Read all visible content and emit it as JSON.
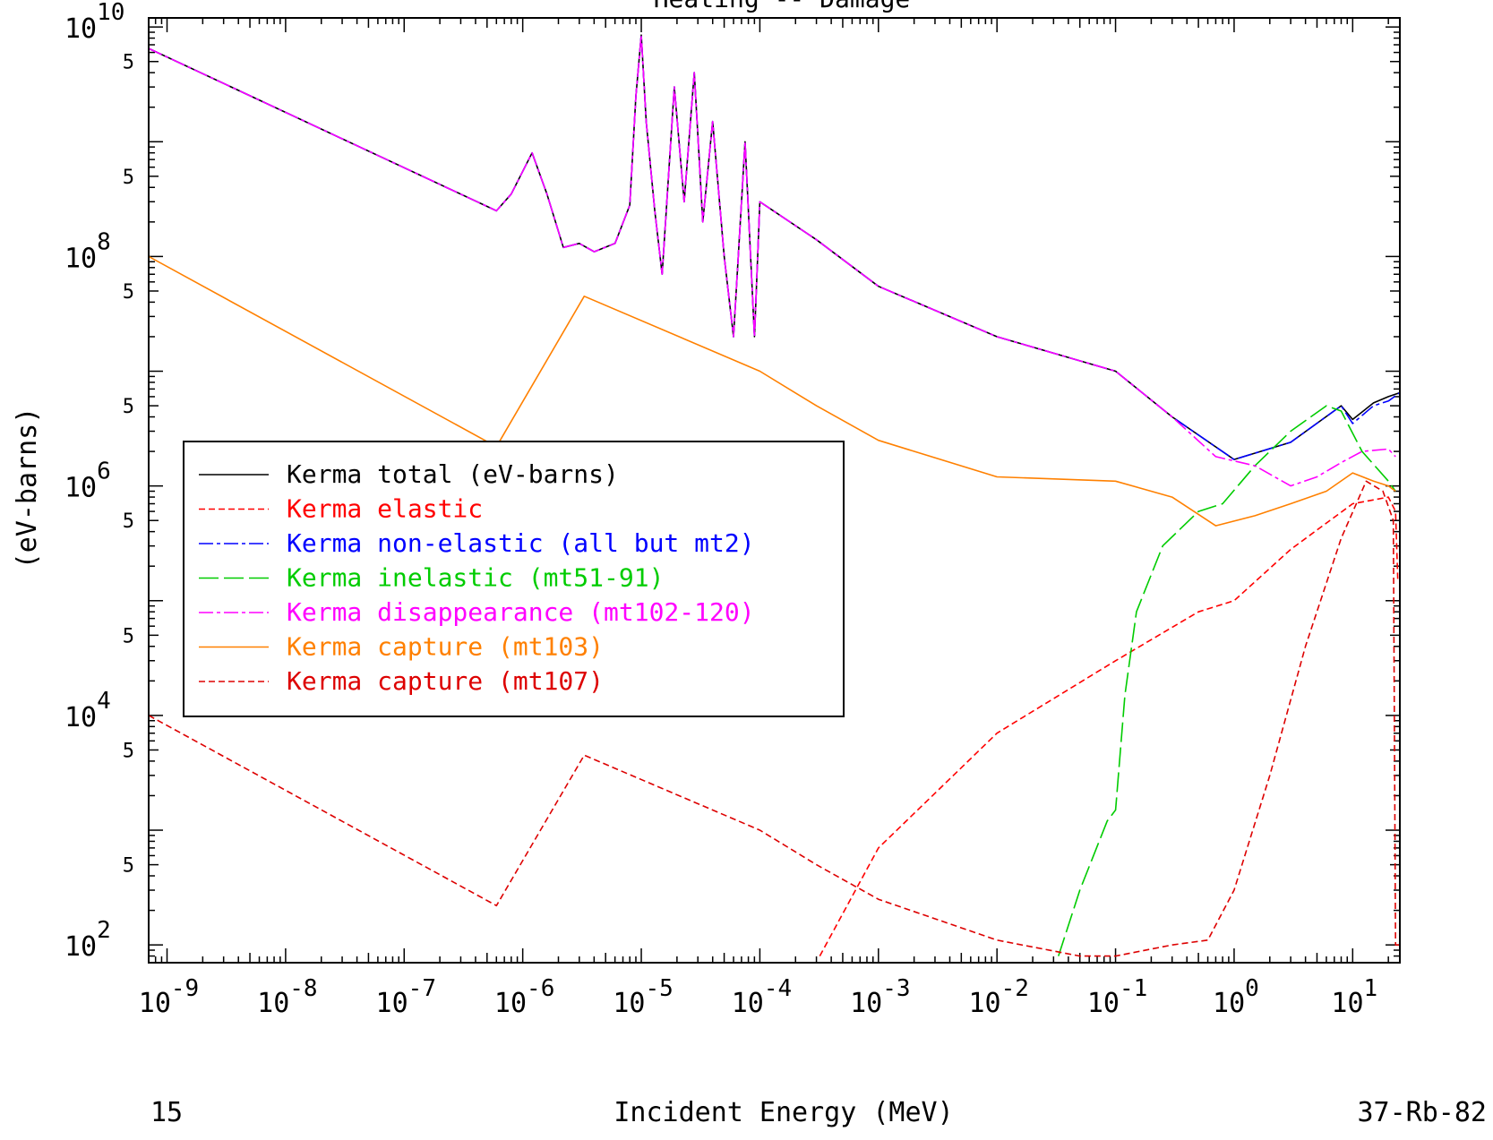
{
  "page": {
    "title": "Heating -- Damage",
    "footer_left": "15",
    "footer_right": "37-Rb-82"
  },
  "chart_data": {
    "type": "line",
    "title": "Heating -- Damage",
    "xlabel": "Incident Energy (MeV)",
    "ylabel": "(eV-barns)",
    "xscale": "log",
    "yscale": "log",
    "xlim": [
      7e-10,
      25
    ],
    "ylim": [
      70,
      12000000000
    ],
    "x_ticks": [
      {
        "base": "10",
        "exp": "-9",
        "value": 1e-09
      },
      {
        "base": "10",
        "exp": "-8",
        "value": 1e-08
      },
      {
        "base": "10",
        "exp": "-7",
        "value": 1e-07
      },
      {
        "base": "10",
        "exp": "-6",
        "value": 1e-06
      },
      {
        "base": "10",
        "exp": "-5",
        "value": 1e-05
      },
      {
        "base": "10",
        "exp": "-4",
        "value": 0.0001
      },
      {
        "base": "10",
        "exp": "-3",
        "value": 0.001
      },
      {
        "base": "10",
        "exp": "-2",
        "value": 0.01
      },
      {
        "base": "10",
        "exp": "-1",
        "value": 0.1
      },
      {
        "base": "10",
        "exp": "0",
        "value": 1
      },
      {
        "base": "10",
        "exp": "1",
        "value": 10
      }
    ],
    "y_ticks_major": [
      {
        "base": "10",
        "exp": "10",
        "value": 10000000000.0
      },
      {
        "base": "10",
        "exp": "8",
        "value": 100000000.0
      },
      {
        "base": "10",
        "exp": "6",
        "value": 1000000.0
      },
      {
        "base": "10",
        "exp": "4",
        "value": 10000.0
      },
      {
        "base": "10",
        "exp": "2",
        "value": 100.0
      }
    ],
    "y_ticks_minor_label": "5",
    "y_ticks_minor": [
      5000000000.0,
      500000000.0,
      50000000.0,
      5000000.0,
      500000.0,
      50000.0,
      5000.0,
      500.0
    ],
    "legend_position": "left",
    "series": [
      {
        "name": "Kerma total  (eV-barns)",
        "color": "#000000",
        "dash": "solid",
        "points": [
          [
            7e-10,
            6500000000.0
          ],
          [
            6e-07,
            250000000.0
          ],
          [
            8e-07,
            350000000.0
          ],
          [
            1.2e-06,
            800000000.0
          ],
          [
            1.6e-06,
            350000000.0
          ],
          [
            2.2e-06,
            120000000.0
          ],
          [
            3e-06,
            130000000.0
          ],
          [
            4e-06,
            110000000.0
          ],
          [
            6e-06,
            130000000.0
          ],
          [
            8e-06,
            280000000.0
          ],
          [
            9e-06,
            2500000000.0
          ],
          [
            1e-05,
            8500000000.0
          ],
          [
            1.1e-05,
            1500000000.0
          ],
          [
            1.3e-05,
            250000000.0
          ],
          [
            1.5e-05,
            70000000.0
          ],
          [
            1.9e-05,
            3000000000.0
          ],
          [
            2.3e-05,
            300000000.0
          ],
          [
            2.8e-05,
            4000000000.0
          ],
          [
            3.3e-05,
            200000000.0
          ],
          [
            4e-05,
            1500000000.0
          ],
          [
            5e-05,
            100000000.0
          ],
          [
            6e-05,
            20000000.0
          ],
          [
            7.5e-05,
            1000000000.0
          ],
          [
            9e-05,
            20000000.0
          ],
          [
            0.0001,
            300000000.0
          ],
          [
            0.0003,
            140000000.0
          ],
          [
            0.001,
            55000000.0
          ],
          [
            0.01,
            20000000.0
          ],
          [
            0.1,
            10000000.0
          ],
          [
            0.3,
            4000000.0
          ],
          [
            1,
            1700000.0
          ],
          [
            3,
            2400000.0
          ],
          [
            8,
            5000000.0
          ],
          [
            10,
            3800000.0
          ],
          [
            15,
            5300000.0
          ],
          [
            20,
            6000000.0
          ],
          [
            25,
            6500000.0
          ]
        ]
      },
      {
        "name": "Kerma elastic",
        "color": "#ff0000",
        "dash": "short-dash",
        "points": [
          [
            0.00032,
            80
          ],
          [
            0.001,
            700
          ],
          [
            0.01,
            7000
          ],
          [
            0.1,
            30000
          ],
          [
            0.5,
            80000
          ],
          [
            1,
            100000
          ],
          [
            3,
            280000
          ],
          [
            10,
            700000
          ],
          [
            20,
            800000
          ],
          [
            23,
            600000
          ],
          [
            24,
            150000
          ],
          [
            25,
            150000
          ]
        ]
      },
      {
        "name": "Kerma non-elastic (all but mt2)",
        "color": "#0000ff",
        "dash": "dash-dot",
        "points": [
          [
            7e-10,
            6500000000.0
          ],
          [
            6e-07,
            250000000.0
          ],
          [
            8e-07,
            350000000.0
          ],
          [
            1.2e-06,
            800000000.0
          ],
          [
            1.6e-06,
            350000000.0
          ],
          [
            2.2e-06,
            120000000.0
          ],
          [
            3e-06,
            130000000.0
          ],
          [
            4e-06,
            110000000.0
          ],
          [
            6e-06,
            130000000.0
          ],
          [
            8e-06,
            280000000.0
          ],
          [
            9e-06,
            2500000000.0
          ],
          [
            1e-05,
            8500000000.0
          ],
          [
            1.1e-05,
            1500000000.0
          ],
          [
            1.3e-05,
            250000000.0
          ],
          [
            1.5e-05,
            70000000.0
          ],
          [
            1.9e-05,
            3000000000.0
          ],
          [
            2.3e-05,
            300000000.0
          ],
          [
            2.8e-05,
            4000000000.0
          ],
          [
            3.3e-05,
            200000000.0
          ],
          [
            4e-05,
            1500000000.0
          ],
          [
            5e-05,
            100000000.0
          ],
          [
            6e-05,
            20000000.0
          ],
          [
            7.5e-05,
            1000000000.0
          ],
          [
            9e-05,
            20000000.0
          ],
          [
            0.0001,
            300000000.0
          ],
          [
            0.0003,
            140000000.0
          ],
          [
            0.001,
            55000000.0
          ],
          [
            0.01,
            20000000.0
          ],
          [
            0.1,
            10000000.0
          ],
          [
            0.3,
            4000000.0
          ],
          [
            1,
            1700000.0
          ],
          [
            3,
            2400000.0
          ],
          [
            8,
            5000000.0
          ],
          [
            10,
            3500000.0
          ],
          [
            15,
            5000000.0
          ],
          [
            20,
            5500000.0
          ],
          [
            25,
            6500000.0
          ]
        ]
      },
      {
        "name": "Kerma inelastic (mt51-91)",
        "color": "#00cc00",
        "dash": "long-dash",
        "points": [
          [
            0.033,
            80
          ],
          [
            0.05,
            300
          ],
          [
            0.085,
            1200
          ],
          [
            0.1,
            1500
          ],
          [
            0.12,
            15000
          ],
          [
            0.15,
            80000
          ],
          [
            0.25,
            300000
          ],
          [
            0.5,
            600000
          ],
          [
            0.8,
            700000
          ],
          [
            1.5,
            1500000
          ],
          [
            3,
            3000000
          ],
          [
            6,
            5000000
          ],
          [
            8,
            4500000
          ],
          [
            12,
            2000000
          ],
          [
            20,
            1100000
          ],
          [
            23,
            900000
          ]
        ]
      },
      {
        "name": "Kerma disappearance (mt102-120)",
        "color": "#ff00ff",
        "dash": "dash-dot",
        "points": [
          [
            7e-10,
            6500000000.0
          ],
          [
            6e-07,
            250000000.0
          ],
          [
            8e-07,
            350000000.0
          ],
          [
            1.2e-06,
            800000000.0
          ],
          [
            1.6e-06,
            350000000.0
          ],
          [
            2.2e-06,
            120000000.0
          ],
          [
            3e-06,
            130000000.0
          ],
          [
            4e-06,
            110000000.0
          ],
          [
            6e-06,
            130000000.0
          ],
          [
            8e-06,
            280000000.0
          ],
          [
            9e-06,
            2500000000.0
          ],
          [
            1e-05,
            8500000000.0
          ],
          [
            1.1e-05,
            1500000000.0
          ],
          [
            1.3e-05,
            250000000.0
          ],
          [
            1.5e-05,
            70000000.0
          ],
          [
            1.9e-05,
            3000000000.0
          ],
          [
            2.3e-05,
            300000000.0
          ],
          [
            2.8e-05,
            4000000000.0
          ],
          [
            3.3e-05,
            200000000.0
          ],
          [
            4e-05,
            1500000000.0
          ],
          [
            5e-05,
            100000000.0
          ],
          [
            6e-05,
            20000000.0
          ],
          [
            7.5e-05,
            1000000000.0
          ],
          [
            9e-05,
            20000000.0
          ],
          [
            0.0001,
            300000000.0
          ],
          [
            0.0003,
            140000000.0
          ],
          [
            0.001,
            55000000.0
          ],
          [
            0.01,
            20000000.0
          ],
          [
            0.1,
            10000000.0
          ],
          [
            0.3,
            4000000.0
          ],
          [
            0.7,
            1800000.0
          ],
          [
            1.5,
            1500000.0
          ],
          [
            3,
            1000000.0
          ],
          [
            5,
            1200000.0
          ],
          [
            8,
            1600000.0
          ],
          [
            12,
            2000000.0
          ],
          [
            20,
            2100000.0
          ],
          [
            23,
            1800000.0
          ]
        ]
      },
      {
        "name": "Kerma capture (mt103)",
        "color": "#ff8000",
        "dash": "solid",
        "points": [
          [
            7e-10,
            100000000.0
          ],
          [
            6e-07,
            2200000.0
          ],
          [
            3.3e-06,
            45000000.0
          ],
          [
            0.0001,
            10000000.0
          ],
          [
            0.0003,
            5000000.0
          ],
          [
            0.001,
            2500000.0
          ],
          [
            0.01,
            1200000.0
          ],
          [
            0.1,
            1100000.0
          ],
          [
            0.3,
            800000.0
          ],
          [
            0.7,
            450000.0
          ],
          [
            1.5,
            550000.0
          ],
          [
            3,
            700000.0
          ],
          [
            6,
            900000.0
          ],
          [
            10,
            1300000.0
          ],
          [
            15,
            1100000.0
          ],
          [
            20,
            1000000.0
          ],
          [
            23,
            900000.0
          ]
        ]
      },
      {
        "name": "Kerma capture (mt107)",
        "color": "#dd0000",
        "dash": "short-dash",
        "points": [
          [
            7e-10,
            10000
          ],
          [
            6e-07,
            220
          ],
          [
            3.3e-06,
            4500
          ],
          [
            0.0001,
            1000
          ],
          [
            0.0003,
            500
          ],
          [
            0.001,
            250
          ],
          [
            0.01,
            110
          ],
          [
            0.05,
            80
          ],
          [
            0.1,
            80
          ],
          [
            0.3,
            100
          ],
          [
            0.6,
            110
          ],
          [
            1,
            300
          ],
          [
            2,
            3000
          ],
          [
            4,
            40000
          ],
          [
            8,
            350000
          ],
          [
            13,
            1100000
          ],
          [
            18,
            900000
          ],
          [
            22,
            500000
          ],
          [
            23,
            100
          ],
          [
            25,
            100
          ]
        ]
      }
    ]
  }
}
